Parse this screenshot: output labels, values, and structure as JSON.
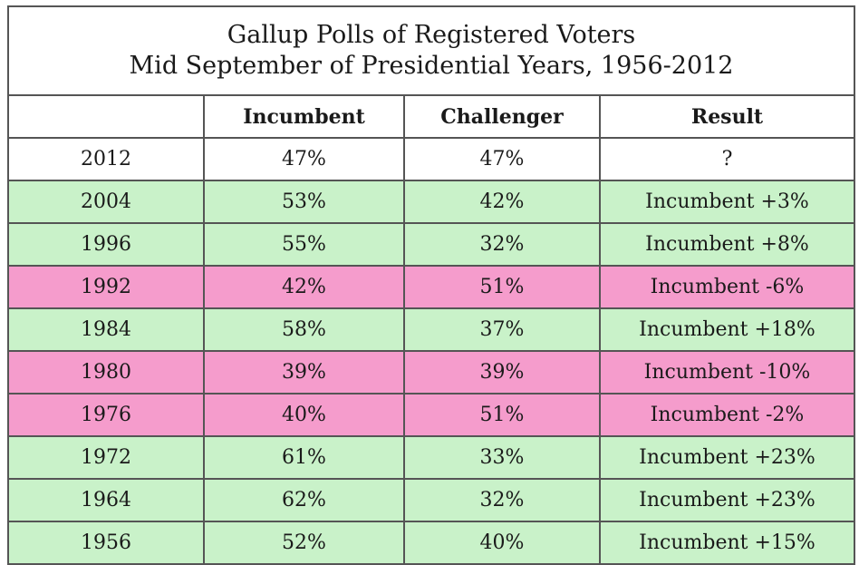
{
  "chart_data": {
    "type": "table",
    "title": "Gallup Polls of Registered Voters",
    "subtitle": "Mid September of Presidential Years, 1956-2012",
    "columns": [
      "",
      "Incumbent",
      "Challenger",
      "Result"
    ],
    "rows": [
      {
        "year": "2012",
        "incumbent": "47%",
        "challenger": "47%",
        "result": "?",
        "outcome": "pending"
      },
      {
        "year": "2004",
        "incumbent": "53%",
        "challenger": "42%",
        "result": "Incumbent +3%",
        "outcome": "won"
      },
      {
        "year": "1996",
        "incumbent": "55%",
        "challenger": "32%",
        "result": "Incumbent +8%",
        "outcome": "won"
      },
      {
        "year": "1992",
        "incumbent": "42%",
        "challenger": "51%",
        "result": "Incumbent -6%",
        "outcome": "lost"
      },
      {
        "year": "1984",
        "incumbent": "58%",
        "challenger": "37%",
        "result": "Incumbent +18%",
        "outcome": "won"
      },
      {
        "year": "1980",
        "incumbent": "39%",
        "challenger": "39%",
        "result": "Incumbent -10%",
        "outcome": "lost"
      },
      {
        "year": "1976",
        "incumbent": "40%",
        "challenger": "51%",
        "result": "Incumbent -2%",
        "outcome": "lost"
      },
      {
        "year": "1972",
        "incumbent": "61%",
        "challenger": "33%",
        "result": "Incumbent +23%",
        "outcome": "won"
      },
      {
        "year": "1964",
        "incumbent": "62%",
        "challenger": "32%",
        "result": "Incumbent +23%",
        "outcome": "won"
      },
      {
        "year": "1956",
        "incumbent": "52%",
        "challenger": "40%",
        "result": "Incumbent +15%",
        "outcome": "won"
      }
    ]
  },
  "colors": {
    "won": "#c9f2c9",
    "lost": "#f59ccc",
    "pending": "#ffffff",
    "border": "#555555",
    "text": "#1a1a1a"
  }
}
